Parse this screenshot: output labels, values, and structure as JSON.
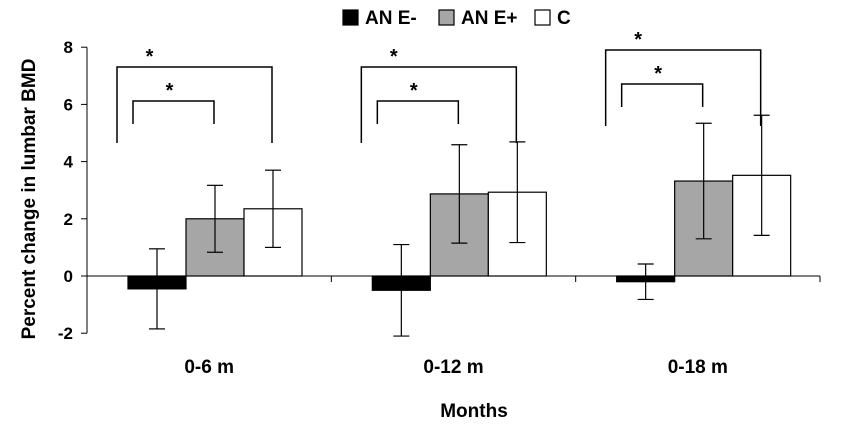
{
  "chart_data": {
    "type": "bar",
    "xlabel": "Months",
    "ylabel": "Percent change in lumbar BMD",
    "categories": [
      "0-6 m",
      "0-12 m",
      "0-18 m"
    ],
    "ylim": [
      -2,
      8
    ],
    "yticks": [
      "-2",
      "0",
      "2",
      "4",
      "6",
      "8"
    ],
    "grid": false,
    "legend_position": "top",
    "series": [
      {
        "name": "AN E-",
        "color": "#000000",
        "values": [
          -0.45,
          -0.5,
          -0.2
        ],
        "errors": [
          1.4,
          1.6,
          0.62
        ]
      },
      {
        "name": "AN E+",
        "color": "#a6a6a6",
        "values": [
          2.0,
          2.87,
          3.32
        ],
        "errors": [
          1.17,
          1.72,
          2.02
        ]
      },
      {
        "name": "C",
        "color": "#ffffff",
        "values": [
          2.35,
          2.93,
          3.52
        ],
        "errors": [
          1.35,
          1.76,
          2.1
        ]
      }
    ],
    "significance": [
      {
        "category": 0,
        "from": "AN E-",
        "to": "C",
        "label": "*"
      },
      {
        "category": 0,
        "from": "AN E-",
        "to": "AN E+",
        "label": "*"
      },
      {
        "category": 1,
        "from": "AN E-",
        "to": "C",
        "label": "*"
      },
      {
        "category": 1,
        "from": "AN E-",
        "to": "AN E+",
        "label": "*"
      },
      {
        "category": 2,
        "from": "AN E-",
        "to": "C",
        "label": "*"
      },
      {
        "category": 2,
        "from": "AN E-",
        "to": "AN E+",
        "label": "*"
      }
    ]
  }
}
